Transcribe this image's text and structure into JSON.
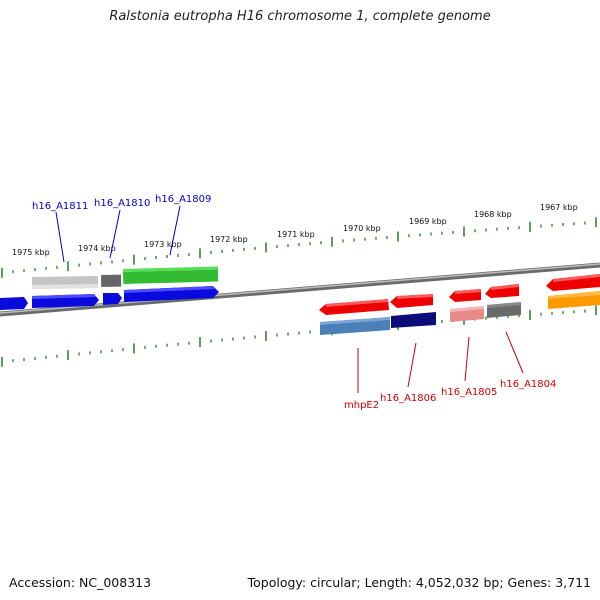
{
  "title": "Ralstonia eutropha H16 chromosome 1, complete genome",
  "footer": {
    "accession": "Accession: NC_008313",
    "topology": "Topology: circular; Length: 4,052,032 bp; Genes: 3,711"
  },
  "ruler_labels": [
    "1975 kbp",
    "1974 kbp",
    "1973 kbp",
    "1972 kbp",
    "1971 kbp",
    "1970 kbp",
    "1969 kbp",
    "1968 kbp",
    "1967 kbp"
  ],
  "gene_labels_top": [
    "h16_A1811",
    "h16_A1810",
    "h16_A1809"
  ],
  "gene_labels_bottom": [
    "mhpE2",
    "h16_A1806",
    "h16_A1805",
    "h16_A1804"
  ],
  "colors": {
    "top_label": "#0000cc",
    "bottom_label": "#cc0000",
    "tick": "#2e8b2e",
    "backbone": "#888888"
  }
}
